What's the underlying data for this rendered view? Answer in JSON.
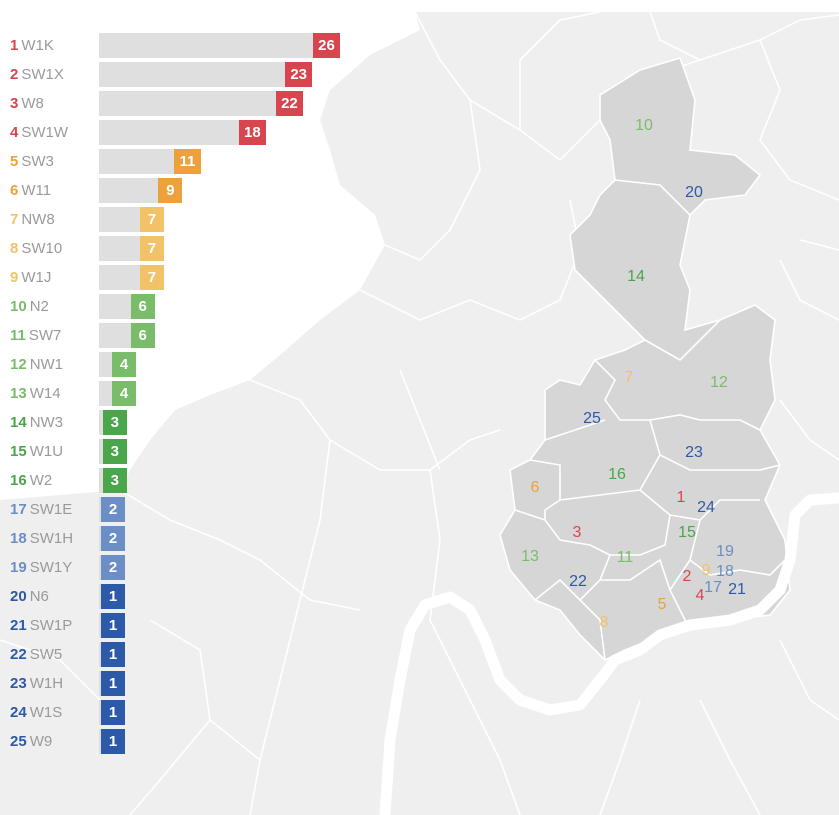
{
  "colors": {
    "red": "#d9454f",
    "orange": "#eca13d",
    "light_orange": "#f3c268",
    "light_green": "#79bd6a",
    "green": "#4aa64b",
    "light_blue": "#6a8ec5",
    "blue": "#2d5aa8",
    "map_land": "#efefef",
    "map_borders": "#ffffff",
    "highlight_area": "#d6d6d6",
    "river": "#ffffff",
    "bar_background": "#dcdcdc",
    "code_text": "#9a9a9a"
  },
  "chart_data": {
    "type": "bar",
    "orientation": "horizontal",
    "title": "",
    "xlabel": "",
    "ylabel": "",
    "xlim": [
      0,
      26
    ],
    "items": [
      {
        "rank": "1",
        "code": "W1K",
        "value": 26,
        "color_group": "red"
      },
      {
        "rank": "2",
        "code": "SW1X",
        "value": 23,
        "color_group": "red"
      },
      {
        "rank": "3",
        "code": "W8",
        "value": 22,
        "color_group": "red"
      },
      {
        "rank": "4",
        "code": "SW1W",
        "value": 18,
        "color_group": "red"
      },
      {
        "rank": "5",
        "code": "SW3",
        "value": 11,
        "color_group": "orange"
      },
      {
        "rank": "6",
        "code": "W11",
        "value": 9,
        "color_group": "orange"
      },
      {
        "rank": "7",
        "code": "NW8",
        "value": 7,
        "color_group": "light_orange"
      },
      {
        "rank": "8",
        "code": "SW10",
        "value": 7,
        "color_group": "light_orange"
      },
      {
        "rank": "9",
        "code": "W1J",
        "value": 7,
        "color_group": "light_orange"
      },
      {
        "rank": "10",
        "code": "N2",
        "value": 6,
        "color_group": "light_green"
      },
      {
        "rank": "11",
        "code": "SW7",
        "value": 6,
        "color_group": "light_green"
      },
      {
        "rank": "12",
        "code": "NW1",
        "value": 4,
        "color_group": "light_green"
      },
      {
        "rank": "13",
        "code": "W14",
        "value": 4,
        "color_group": "light_green"
      },
      {
        "rank": "14",
        "code": "NW3",
        "value": 3,
        "color_group": "green"
      },
      {
        "rank": "15",
        "code": "W1U",
        "value": 3,
        "color_group": "green"
      },
      {
        "rank": "16",
        "code": "W2",
        "value": 3,
        "color_group": "green"
      },
      {
        "rank": "17",
        "code": "SW1E",
        "value": 2,
        "color_group": "light_blue"
      },
      {
        "rank": "18",
        "code": "SW1H",
        "value": 2,
        "color_group": "light_blue"
      },
      {
        "rank": "19",
        "code": "SW1Y",
        "value": 2,
        "color_group": "light_blue"
      },
      {
        "rank": "20",
        "code": "N6",
        "value": 1,
        "color_group": "blue"
      },
      {
        "rank": "21",
        "code": "SW1P",
        "value": 1,
        "color_group": "blue"
      },
      {
        "rank": "22",
        "code": "SW5",
        "value": 1,
        "color_group": "blue"
      },
      {
        "rank": "23",
        "code": "W1H",
        "value": 1,
        "color_group": "blue"
      },
      {
        "rank": "24",
        "code": "W1S",
        "value": 1,
        "color_group": "blue"
      },
      {
        "rank": "25",
        "code": "W9",
        "value": 1,
        "color_group": "blue"
      }
    ]
  }
}
